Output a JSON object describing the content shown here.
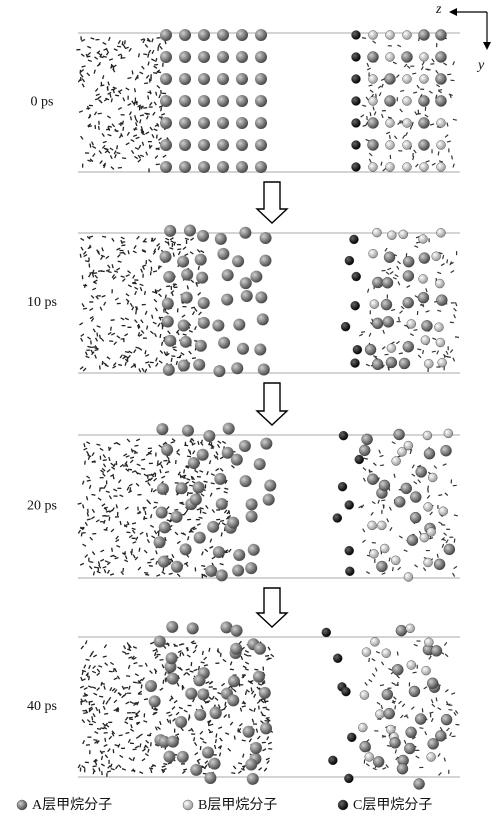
{
  "figure": {
    "axes": {
      "z": "z",
      "y": "y"
    },
    "snapshots": [
      {
        "time": "0 ps"
      },
      {
        "time": "10 ps"
      },
      {
        "time": "20 ps"
      },
      {
        "time": "40 ps"
      }
    ],
    "legend": [
      "A层甲烷分子",
      "B层甲烷分子",
      "C层甲烷分子"
    ]
  }
}
